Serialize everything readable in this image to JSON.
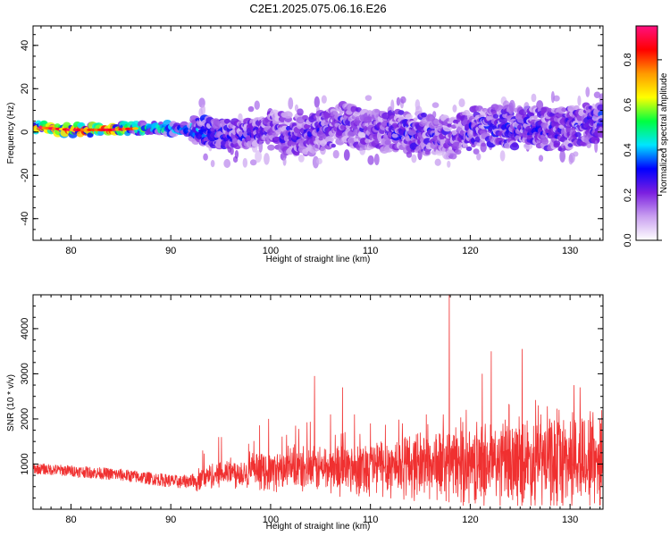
{
  "title": "C2E1.2025.075.06.16.E26",
  "chart_data": [
    {
      "type": "heatmap",
      "title": "C2E1.2025.075.06.16.E26",
      "xlabel": "Height of straight line (km)",
      "ylabel": "Frequency (Hz)",
      "xlim": [
        76.2,
        133.3
      ],
      "ylim": [
        -50,
        49
      ],
      "xticks": [
        80,
        90,
        100,
        110,
        120,
        130
      ],
      "yticks": [
        -40,
        -20,
        0,
        20,
        40
      ],
      "grid": false,
      "colorbar": {
        "label": "Normalized spectral amplitude",
        "range": [
          0,
          0.95
        ],
        "ticks": [
          0.0,
          0.2,
          0.4,
          0.6,
          0.8
        ],
        "colormap": [
          "#ffffff",
          "#c9a0f0",
          "#7b1fe0",
          "#0000ff",
          "#00e5ff",
          "#00ff40",
          "#ffff00",
          "#ff9900",
          "#ff0000",
          "#ff1080"
        ]
      },
      "ridge": {
        "description_points_x": [
          77,
          80,
          84,
          88,
          92,
          96,
          100,
          104,
          107,
          110,
          114,
          118,
          121,
          125,
          129,
          133
        ],
        "center_freq_hz": [
          2,
          1,
          1,
          2,
          1,
          -1,
          0,
          -2,
          4,
          1,
          0,
          -3,
          3,
          2,
          1,
          5
        ],
        "peak_amplitude": [
          0.9,
          0.88,
          0.9,
          0.55,
          0.45,
          0.35,
          0.3,
          0.3,
          0.3,
          0.28,
          0.35,
          0.28,
          0.35,
          0.35,
          0.3,
          0.35
        ]
      }
    },
    {
      "type": "line",
      "xlabel": "Height of straight line (km)",
      "ylabel": "SNR (10 * v/v)",
      "xlim": [
        76.2,
        133.3
      ],
      "ylim": [
        0,
        4750
      ],
      "xticks": [
        80,
        90,
        100,
        110,
        120,
        130
      ],
      "yticks": [
        1000,
        2000,
        3000,
        4000
      ],
      "grid": false,
      "color": "#f03030",
      "series": [
        {
          "baseline_x": [
            76.2,
            80,
            85,
            88,
            91,
            92.5,
            95,
            100,
            105,
            110,
            115,
            120,
            125,
            130,
            133.3
          ],
          "baseline_y": [
            900,
            850,
            760,
            680,
            600,
            650,
            800,
            850,
            900,
            950,
            1000,
            1000,
            1050,
            1100,
            1150
          ],
          "spikes": [
            {
              "x": 93.2,
              "y": 1300
            },
            {
              "x": 94.8,
              "y": 1600
            },
            {
              "x": 97.8,
              "y": 1450
            },
            {
              "x": 99.8,
              "y": 2000
            },
            {
              "x": 102.5,
              "y": 1850
            },
            {
              "x": 104.4,
              "y": 2950
            },
            {
              "x": 106,
              "y": 2100
            },
            {
              "x": 107.2,
              "y": 2700
            },
            {
              "x": 108.4,
              "y": 2100
            },
            {
              "x": 110,
              "y": 1900
            },
            {
              "x": 113.2,
              "y": 1900
            },
            {
              "x": 115.6,
              "y": 2100
            },
            {
              "x": 117.3,
              "y": 2100
            },
            {
              "x": 117.9,
              "y": 4750
            },
            {
              "x": 119.6,
              "y": 2200
            },
            {
              "x": 121.2,
              "y": 3000
            },
            {
              "x": 122.1,
              "y": 3500
            },
            {
              "x": 123.9,
              "y": 2300
            },
            {
              "x": 125.2,
              "y": 3550
            },
            {
              "x": 126.8,
              "y": 2300
            },
            {
              "x": 128.9,
              "y": 2200
            },
            {
              "x": 130.4,
              "y": 2750
            },
            {
              "x": 131,
              "y": 2700
            },
            {
              "x": 132.3,
              "y": 2150
            }
          ]
        }
      ]
    }
  ]
}
